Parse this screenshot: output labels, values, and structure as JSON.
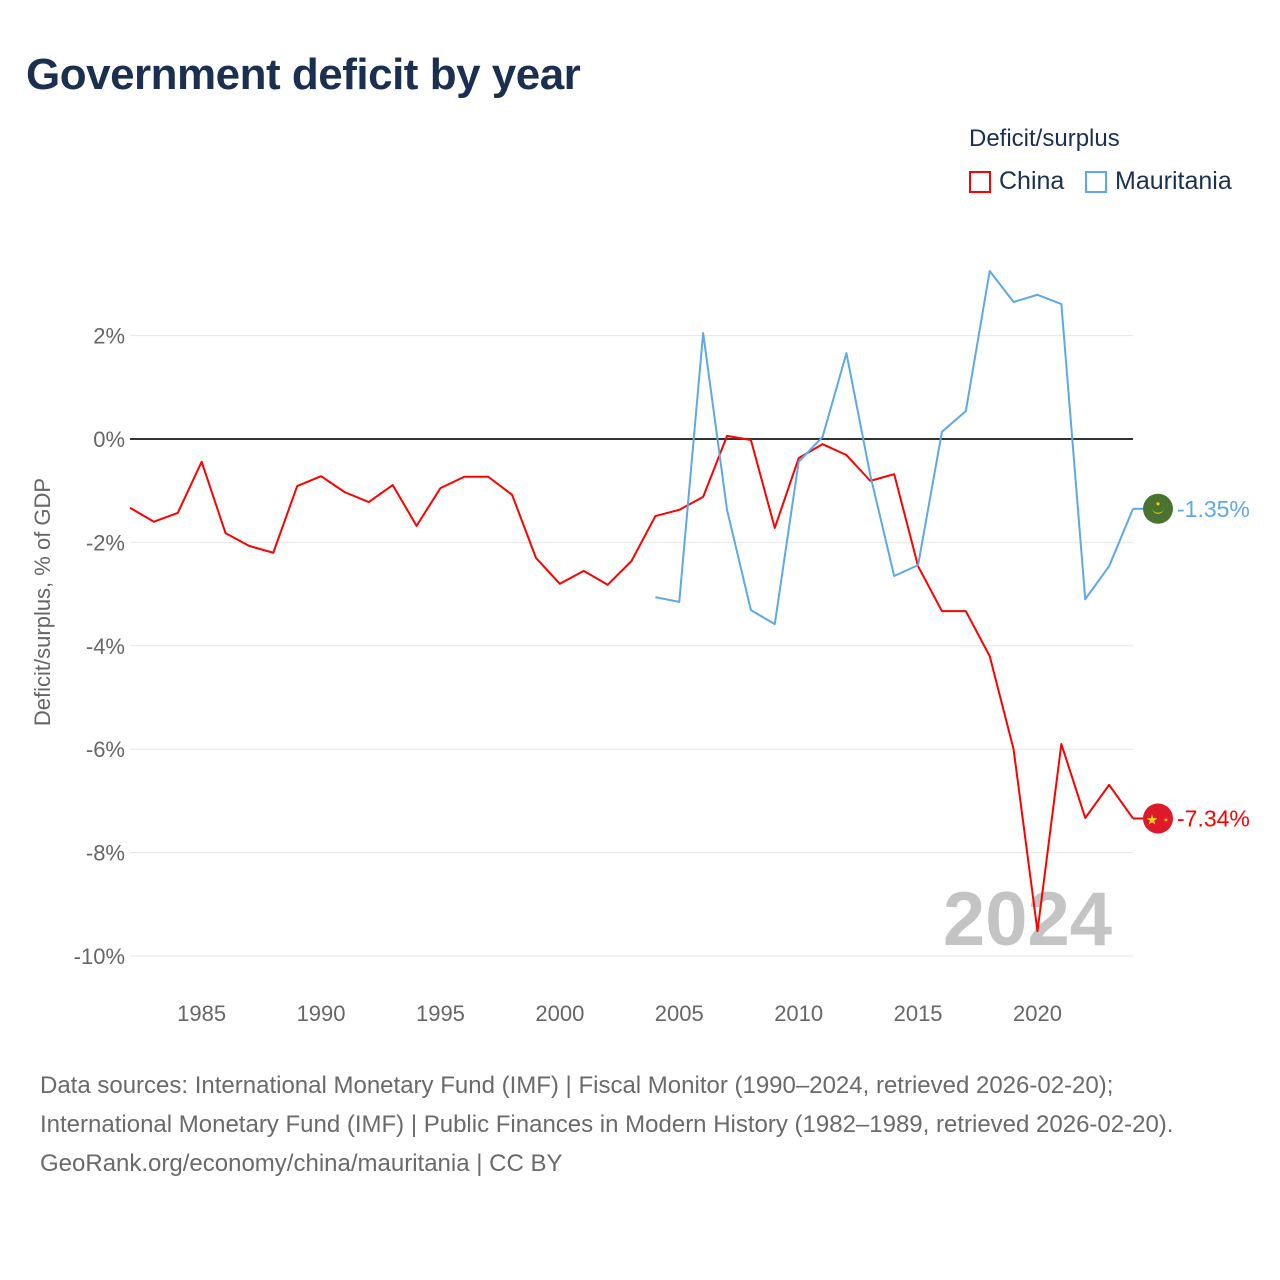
{
  "chart_data": {
    "type": "line",
    "title": "Government deficit by year",
    "ylabel": "Deficit/surplus, % of GDP",
    "xlabel": "",
    "ylim": [
      -10,
      3.5
    ],
    "xlim": [
      1982,
      2024
    ],
    "yticks": [
      2,
      0,
      -2,
      -4,
      -6,
      -8,
      -10
    ],
    "ytick_labels": [
      "2%",
      "0%",
      "-2%",
      "-4%",
      "-6%",
      "-8%",
      "-10%"
    ],
    "xticks": [
      1985,
      1990,
      1995,
      2000,
      2005,
      2010,
      2015,
      2020
    ],
    "xtick_labels": [
      "1985",
      "1990",
      "1995",
      "2000",
      "2005",
      "2010",
      "2015",
      "2020"
    ],
    "grid": true,
    "legend_title": "Deficit/surplus",
    "legend_position": "top-right",
    "watermark_year": "2024",
    "series": [
      {
        "name": "China",
        "color": "#ff0000",
        "end_label": "-7.34%",
        "x": [
          1982,
          1983,
          1984,
          1985,
          1986,
          1987,
          1988,
          1989,
          1990,
          1991,
          1992,
          1993,
          1994,
          1995,
          1996,
          1997,
          1998,
          1999,
          2000,
          2001,
          2002,
          2003,
          2004,
          2005,
          2006,
          2007,
          2008,
          2009,
          2010,
          2011,
          2012,
          2013,
          2014,
          2015,
          2016,
          2017,
          2018,
          2019,
          2020,
          2021,
          2022,
          2023,
          2024
        ],
        "values": [
          -1.33,
          -1.6,
          -1.43,
          -0.44,
          -1.82,
          -2.07,
          -2.2,
          -0.91,
          -0.72,
          -1.03,
          -1.22,
          -0.89,
          -1.68,
          -0.95,
          -0.73,
          -0.73,
          -1.08,
          -2.3,
          -2.8,
          -2.55,
          -2.82,
          -2.36,
          -1.49,
          -1.37,
          -1.12,
          0.06,
          -0.02,
          -1.72,
          -0.37,
          -0.1,
          -0.31,
          -0.81,
          -0.68,
          -2.46,
          -3.33,
          -3.33,
          -4.2,
          -6.0,
          -9.52,
          -5.9,
          -7.33,
          -6.69,
          -7.34
        ]
      },
      {
        "name": "Mauritania",
        "color": "#5ea8e8",
        "end_label": "-1.35%",
        "x": [
          2004,
          2005,
          2006,
          2007,
          2008,
          2009,
          2010,
          2011,
          2012,
          2013,
          2014,
          2015,
          2016,
          2017,
          2018,
          2019,
          2020,
          2021,
          2022,
          2023,
          2024
        ],
        "values": [
          -3.06,
          -3.15,
          2.05,
          -1.37,
          -3.31,
          -3.58,
          -0.44,
          0.04,
          1.66,
          -0.7,
          -2.65,
          -2.44,
          0.14,
          0.54,
          3.25,
          2.65,
          2.79,
          2.61,
          -3.1,
          -2.46,
          -1.35
        ]
      }
    ]
  },
  "footer": {
    "sources": "Data sources: International Monetary Fund (IMF) | Fiscal Monitor (1990–2024, retrieved 2026-02-20); International Monetary Fund (IMF) | Public Finances in Modern History (1982–1989, retrieved 2026-02-20).",
    "credit": "GeoRank.org/economy/china/mauritania | CC BY"
  }
}
